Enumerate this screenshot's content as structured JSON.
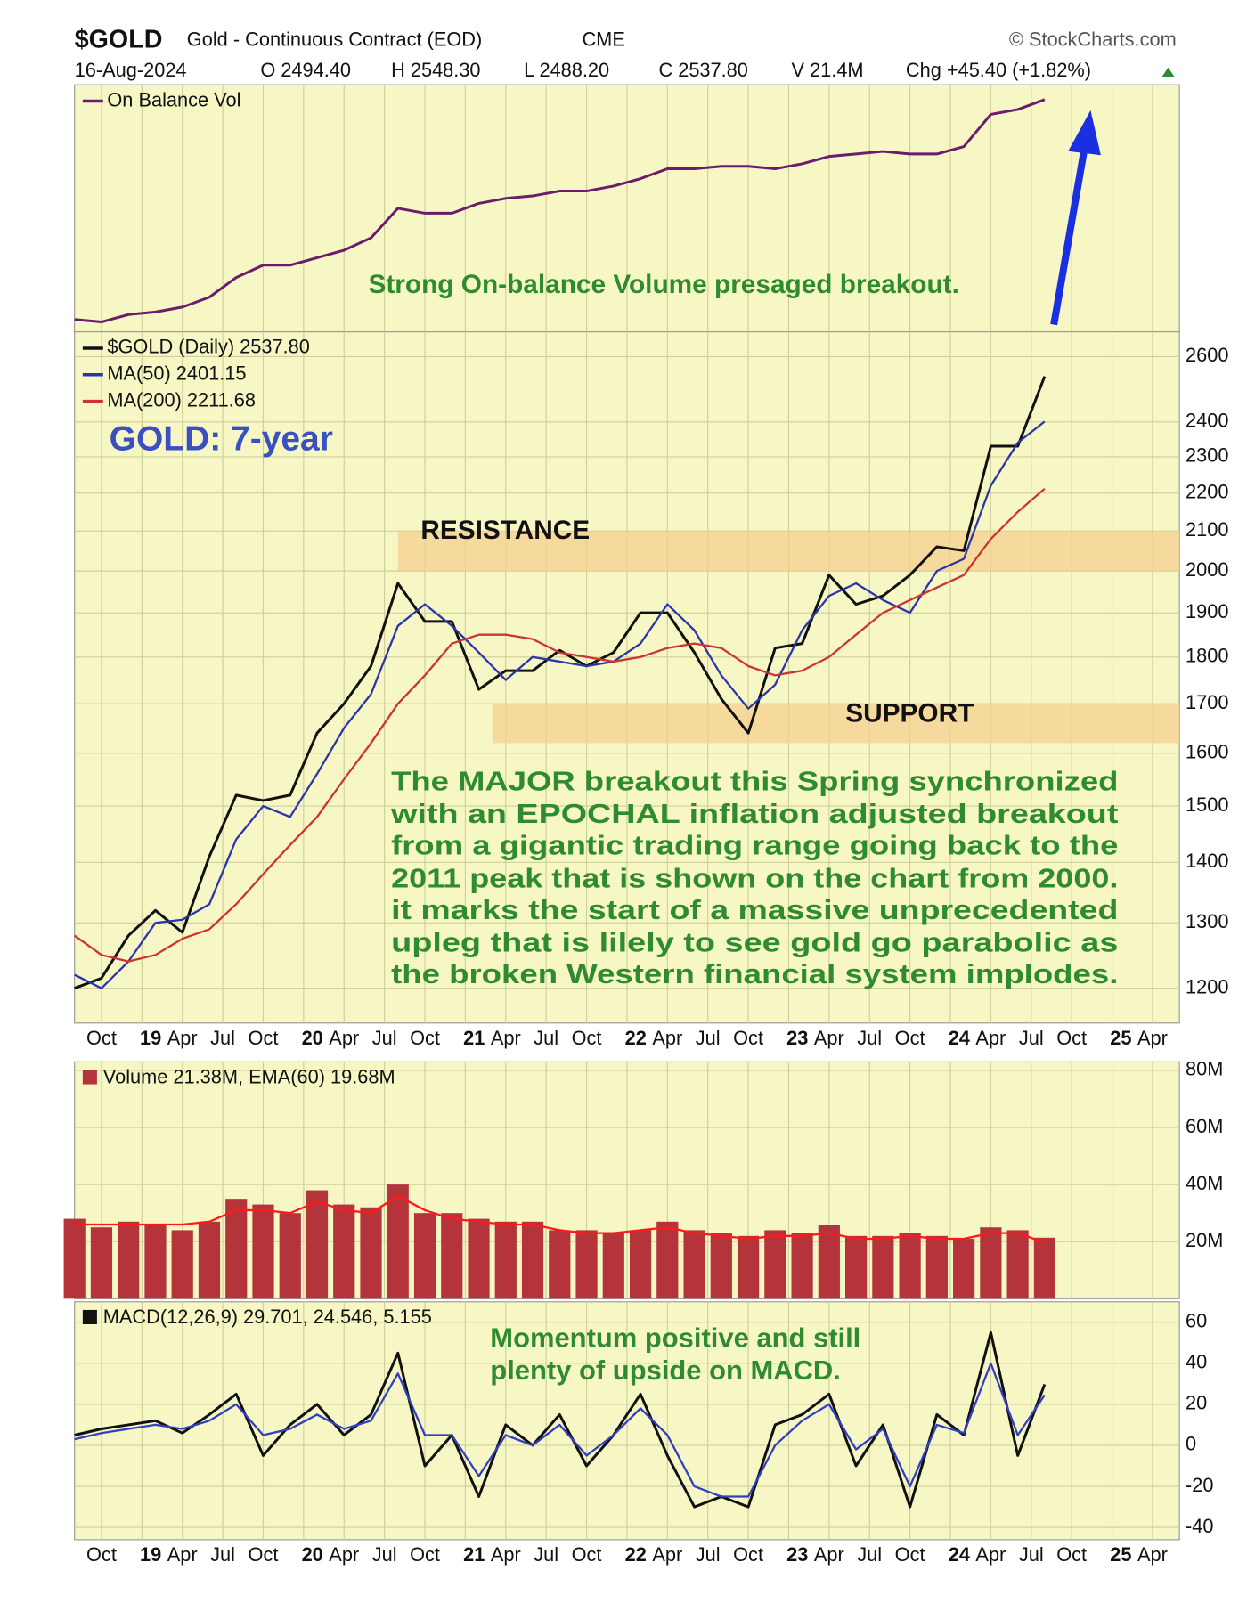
{
  "header": {
    "symbol": "$GOLD",
    "name": "Gold - Continuous Contract (EOD)",
    "exchange": "CME",
    "source": "© StockCharts.com",
    "date": "16-Aug-2024",
    "open": "O 2494.40",
    "high": "H 2548.30",
    "low": "L 2488.20",
    "close": "C 2537.80",
    "volume": "V 21.4M",
    "change": "Chg +45.40 (+1.82%)"
  },
  "chart_data": [
    {
      "type": "line",
      "x": [
        "2018-08",
        "2018-10",
        "2018-12",
        "2019-02",
        "2019-04",
        "2019-06",
        "2019-08",
        "2019-10",
        "2019-12",
        "2020-02",
        "2020-04",
        "2020-06",
        "2020-08",
        "2020-10",
        "2020-12",
        "2021-02",
        "2021-04",
        "2021-06",
        "2021-08",
        "2021-10",
        "2021-12",
        "2022-02",
        "2022-04",
        "2022-06",
        "2022-08",
        "2022-10",
        "2022-12",
        "2023-02",
        "2023-04",
        "2023-06",
        "2023-08",
        "2023-10",
        "2023-12",
        "2024-02",
        "2024-04",
        "2024-06",
        "2024-08"
      ],
      "xlim": [
        "2018-08",
        "2025-06"
      ],
      "ylim": [
        0,
        100
      ],
      "grid": true,
      "series": [
        {
          "name": "On Balance Vol",
          "color": "#6b1d6b",
          "values": [
            5,
            4,
            7,
            8,
            10,
            14,
            22,
            27,
            27,
            30,
            33,
            38,
            50,
            48,
            48,
            52,
            54,
            55,
            57,
            57,
            59,
            62,
            66,
            66,
            67,
            67,
            66,
            68,
            71,
            72,
            73,
            72,
            72,
            75,
            88,
            90,
            94
          ]
        }
      ],
      "annotations": [
        {
          "text": "Strong On-balance Volume presaged breakout.",
          "color": "#2e8b2e"
        }
      ]
    },
    {
      "type": "line",
      "log": true,
      "x": [
        "2018-08",
        "2018-10",
        "2018-12",
        "2019-02",
        "2019-04",
        "2019-06",
        "2019-08",
        "2019-10",
        "2019-12",
        "2020-02",
        "2020-04",
        "2020-06",
        "2020-08",
        "2020-10",
        "2020-12",
        "2021-02",
        "2021-04",
        "2021-06",
        "2021-08",
        "2021-10",
        "2021-12",
        "2022-02",
        "2022-04",
        "2022-06",
        "2022-08",
        "2022-10",
        "2022-12",
        "2023-02",
        "2023-04",
        "2023-06",
        "2023-08",
        "2023-10",
        "2023-12",
        "2024-02",
        "2024-04",
        "2024-06",
        "2024-08"
      ],
      "xlim": [
        "2018-08",
        "2025-06"
      ],
      "ylim": [
        1150,
        2680
      ],
      "grid": true,
      "yticks": [
        1200,
        1300,
        1400,
        1500,
        1600,
        1700,
        1800,
        1900,
        2000,
        2100,
        2200,
        2300,
        2400,
        2600
      ],
      "xticks": [
        {
          "value": "2018-10",
          "label": "Oct"
        },
        {
          "value": "2019-01",
          "label": "19"
        },
        {
          "value": "2019-04",
          "label": "Apr"
        },
        {
          "value": "2019-07",
          "label": "Jul"
        },
        {
          "value": "2019-10",
          "label": "Oct"
        },
        {
          "value": "2020-01",
          "label": "20"
        },
        {
          "value": "2020-04",
          "label": "Apr"
        },
        {
          "value": "2020-07",
          "label": "Jul"
        },
        {
          "value": "2020-10",
          "label": "Oct"
        },
        {
          "value": "2021-01",
          "label": "21"
        },
        {
          "value": "2021-04",
          "label": "Apr"
        },
        {
          "value": "2021-07",
          "label": "Jul"
        },
        {
          "value": "2021-10",
          "label": "Oct"
        },
        {
          "value": "2022-01",
          "label": "22"
        },
        {
          "value": "2022-04",
          "label": "Apr"
        },
        {
          "value": "2022-07",
          "label": "Jul"
        },
        {
          "value": "2022-10",
          "label": "Oct"
        },
        {
          "value": "2023-01",
          "label": "23"
        },
        {
          "value": "2023-04",
          "label": "Apr"
        },
        {
          "value": "2023-07",
          "label": "Jul"
        },
        {
          "value": "2023-10",
          "label": "Oct"
        },
        {
          "value": "2024-01",
          "label": "24"
        },
        {
          "value": "2024-04",
          "label": "Apr"
        },
        {
          "value": "2024-07",
          "label": "Jul"
        },
        {
          "value": "2024-10",
          "label": "Oct"
        },
        {
          "value": "2025-01",
          "label": "25"
        },
        {
          "value": "2025-04",
          "label": "Apr"
        }
      ],
      "series": [
        {
          "name": "$GOLD (Daily) 2537.80",
          "color": "#111111",
          "values": [
            1200,
            1215,
            1280,
            1320,
            1285,
            1410,
            1520,
            1510,
            1520,
            1640,
            1700,
            1780,
            1970,
            1880,
            1880,
            1730,
            1770,
            1770,
            1815,
            1780,
            1810,
            1900,
            1900,
            1810,
            1710,
            1640,
            1820,
            1830,
            1990,
            1920,
            1940,
            1990,
            2060,
            2050,
            2330,
            2330,
            2537.8
          ]
        },
        {
          "name": "MA(50) 2401.15",
          "color": "#2a36a8",
          "values": [
            1220,
            1200,
            1240,
            1300,
            1305,
            1330,
            1440,
            1500,
            1480,
            1560,
            1650,
            1720,
            1870,
            1920,
            1870,
            1810,
            1750,
            1800,
            1790,
            1780,
            1790,
            1830,
            1920,
            1860,
            1760,
            1690,
            1740,
            1860,
            1940,
            1970,
            1930,
            1900,
            2000,
            2030,
            2220,
            2340,
            2401.15
          ]
        },
        {
          "name": "MA(200) 2211.68",
          "color": "#cc3333",
          "values": [
            1280,
            1250,
            1240,
            1250,
            1275,
            1290,
            1330,
            1380,
            1430,
            1480,
            1550,
            1620,
            1700,
            1760,
            1830,
            1850,
            1850,
            1840,
            1810,
            1800,
            1790,
            1800,
            1820,
            1830,
            1820,
            1780,
            1760,
            1770,
            1800,
            1850,
            1900,
            1930,
            1960,
            1990,
            2080,
            2150,
            2211.68
          ]
        }
      ],
      "zones": [
        {
          "label": "RESISTANCE",
          "from": 2000,
          "to": 2100,
          "start": "2020-08",
          "color": "#f6cf8e"
        },
        {
          "label": "SUPPORT",
          "from": 1620,
          "to": 1700,
          "start": "2021-03",
          "color": "#f6cf8e"
        }
      ],
      "annotations": [
        {
          "text": "GOLD: 7-year",
          "color": "#3a4fc0"
        },
        {
          "text": "The MAJOR breakout this Spring synchronized",
          "color": "#2e8b2e"
        },
        {
          "text": "with an EPOCHAL inflation adjusted breakout",
          "color": "#2e8b2e"
        },
        {
          "text": "from a gigantic trading range going back to the",
          "color": "#2e8b2e"
        },
        {
          "text": "2011 peak that is shown on the chart from 2000.",
          "color": "#2e8b2e"
        },
        {
          "text": "it marks the start of a massive unprecedented",
          "color": "#2e8b2e"
        },
        {
          "text": "upleg that is lilely to see gold go parabolic as",
          "color": "#2e8b2e"
        },
        {
          "text": "the broken Western financial system implodes.",
          "color": "#2e8b2e"
        }
      ]
    },
    {
      "type": "bar",
      "legend": "Volume 21.38M, EMA(60) 19.68M",
      "x": [
        "2018-08",
        "2018-10",
        "2018-12",
        "2019-02",
        "2019-04",
        "2019-06",
        "2019-08",
        "2019-10",
        "2019-12",
        "2020-02",
        "2020-04",
        "2020-06",
        "2020-08",
        "2020-10",
        "2020-12",
        "2021-02",
        "2021-04",
        "2021-06",
        "2021-08",
        "2021-10",
        "2021-12",
        "2022-02",
        "2022-04",
        "2022-06",
        "2022-08",
        "2022-10",
        "2022-12",
        "2023-02",
        "2023-04",
        "2023-06",
        "2023-08",
        "2023-10",
        "2023-12",
        "2024-02",
        "2024-04",
        "2024-06",
        "2024-08"
      ],
      "xlim": [
        "2018-08",
        "2025-06"
      ],
      "ylim": [
        0,
        83
      ],
      "grid": true,
      "yticks": [
        {
          "value": 20,
          "label": "20M"
        },
        {
          "value": 40,
          "label": "40M"
        },
        {
          "value": 60,
          "label": "60M"
        },
        {
          "value": 80,
          "label": "80M"
        }
      ],
      "series": [
        {
          "type": "bar",
          "color": "#b5343c",
          "values": [
            28,
            25,
            27,
            26,
            24,
            27,
            35,
            33,
            30,
            38,
            33,
            32,
            40,
            30,
            30,
            28,
            27,
            27,
            24,
            24,
            23,
            24,
            27,
            24,
            23,
            22,
            24,
            23,
            26,
            22,
            22,
            23,
            22,
            21,
            25,
            24,
            21.38
          ]
        },
        {
          "type": "line",
          "color": "#ff1a1a",
          "values": [
            26,
            26,
            26,
            26,
            26,
            27,
            31,
            31,
            30,
            34,
            31,
            30,
            36,
            31,
            28,
            27,
            26,
            26,
            24,
            23,
            23,
            24,
            25,
            23,
            22,
            21,
            22,
            22,
            23,
            21,
            21,
            22,
            21,
            21,
            23,
            23,
            19.68
          ]
        }
      ]
    },
    {
      "type": "line",
      "legend": "MACD(12,26,9) 29.701, 24.546, 5.155",
      "x": [
        "2018-08",
        "2018-10",
        "2018-12",
        "2019-02",
        "2019-04",
        "2019-06",
        "2019-08",
        "2019-10",
        "2019-12",
        "2020-02",
        "2020-04",
        "2020-06",
        "2020-08",
        "2020-10",
        "2020-12",
        "2021-02",
        "2021-04",
        "2021-06",
        "2021-08",
        "2021-10",
        "2021-12",
        "2022-02",
        "2022-04",
        "2022-06",
        "2022-08",
        "2022-10",
        "2022-12",
        "2023-02",
        "2023-04",
        "2023-06",
        "2023-08",
        "2023-10",
        "2023-12",
        "2024-02",
        "2024-04",
        "2024-06",
        "2024-08"
      ],
      "xlim": [
        "2018-08",
        "2025-06"
      ],
      "ylim": [
        -46,
        70
      ],
      "grid": true,
      "yticks": [
        -40,
        -20,
        0,
        20,
        40,
        60
      ],
      "xticks": [
        {
          "value": "2018-10",
          "label": "Oct"
        },
        {
          "value": "2019-01",
          "label": "19"
        },
        {
          "value": "2019-04",
          "label": "Apr"
        },
        {
          "value": "2019-07",
          "label": "Jul"
        },
        {
          "value": "2019-10",
          "label": "Oct"
        },
        {
          "value": "2020-01",
          "label": "20"
        },
        {
          "value": "2020-04",
          "label": "Apr"
        },
        {
          "value": "2020-07",
          "label": "Jul"
        },
        {
          "value": "2020-10",
          "label": "Oct"
        },
        {
          "value": "2021-01",
          "label": "21"
        },
        {
          "value": "2021-04",
          "label": "Apr"
        },
        {
          "value": "2021-07",
          "label": "Jul"
        },
        {
          "value": "2021-10",
          "label": "Oct"
        },
        {
          "value": "2022-01",
          "label": "22"
        },
        {
          "value": "2022-04",
          "label": "Apr"
        },
        {
          "value": "2022-07",
          "label": "Jul"
        },
        {
          "value": "2022-10",
          "label": "Oct"
        },
        {
          "value": "2023-01",
          "label": "23"
        },
        {
          "value": "2023-04",
          "label": "Apr"
        },
        {
          "value": "2023-07",
          "label": "Jul"
        },
        {
          "value": "2023-10",
          "label": "Oct"
        },
        {
          "value": "2024-01",
          "label": "24"
        },
        {
          "value": "2024-04",
          "label": "Apr"
        },
        {
          "value": "2024-07",
          "label": "Jul"
        },
        {
          "value": "2024-10",
          "label": "Oct"
        },
        {
          "value": "2025-01",
          "label": "25"
        },
        {
          "value": "2025-04",
          "label": "Apr"
        }
      ],
      "series": [
        {
          "color": "#111111",
          "values": [
            5,
            8,
            10,
            12,
            6,
            15,
            25,
            -5,
            10,
            20,
            5,
            15,
            45,
            -10,
            5,
            -25,
            10,
            0,
            15,
            -10,
            5,
            25,
            -5,
            -30,
            -25,
            -30,
            10,
            15,
            25,
            -10,
            10,
            -30,
            15,
            5,
            55,
            -5,
            29.701
          ]
        },
        {
          "color": "#3040c0",
          "values": [
            3,
            6,
            8,
            10,
            8,
            12,
            20,
            5,
            8,
            15,
            8,
            12,
            35,
            5,
            5,
            -15,
            5,
            0,
            10,
            -5,
            5,
            18,
            5,
            -20,
            -25,
            -25,
            0,
            12,
            20,
            -2,
            8,
            -20,
            10,
            6,
            40,
            5,
            24.546
          ]
        }
      ],
      "annotations": [
        {
          "text": "Momentum positive and still",
          "color": "#2e8b2e"
        },
        {
          "text": "plenty of  upside on MACD.",
          "color": "#2e8b2e"
        }
      ]
    }
  ]
}
